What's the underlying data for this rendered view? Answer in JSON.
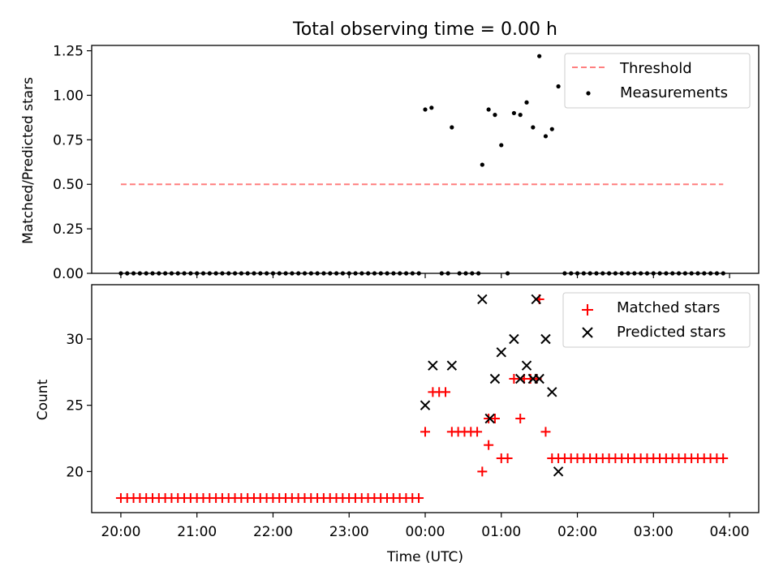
{
  "chart_data": [
    {
      "type": "scatter",
      "title": "Total observing time = 0.00 h",
      "xlabel": "",
      "ylabel": "Matched/Predicted stars",
      "xlim_hours": [
        -0.3833,
        8.3833
      ],
      "ylim": [
        0,
        1.28
      ],
      "yticks": [
        0,
        0.25,
        0.5,
        0.75,
        1.0,
        1.25
      ],
      "ytick_labels": [
        "0.00",
        "0.25",
        "0.50",
        "0.75",
        "1.00",
        "1.25"
      ],
      "legend": {
        "position": "top-right",
        "entries": [
          "Threshold",
          "Measurements"
        ]
      },
      "threshold": {
        "name": "Threshold",
        "value": 0.5,
        "x_start": 0.0,
        "x_end": 7.9167,
        "color": "#ff7f7f"
      },
      "series": [
        {
          "name": "Measurements",
          "color": "#000000",
          "zero_x": [
            0.0,
            0.0833,
            0.1667,
            0.25,
            0.3333,
            0.4167,
            0.5,
            0.5833,
            0.6667,
            0.75,
            0.8333,
            0.9167,
            1.0,
            1.0833,
            1.1667,
            1.25,
            1.3333,
            1.4167,
            1.5,
            1.5833,
            1.6667,
            1.75,
            1.8333,
            1.9167,
            2.0,
            2.0833,
            2.1667,
            2.25,
            2.3333,
            2.4167,
            2.5,
            2.5833,
            2.6667,
            2.75,
            2.8333,
            2.9167,
            3.0,
            3.0833,
            3.1667,
            3.25,
            3.3333,
            3.4167,
            3.5,
            3.5833,
            3.6667,
            3.75,
            3.8333,
            3.9167,
            4.2167,
            4.3,
            4.45,
            4.5333,
            4.6167,
            4.7,
            5.0833,
            5.8333,
            5.9167,
            6.0,
            6.0833,
            6.1667,
            6.25,
            6.3333,
            6.4167,
            6.5,
            6.5833,
            6.6667,
            6.75,
            6.8333,
            6.9167,
            7.0,
            7.0833,
            7.1667,
            7.25,
            7.3333,
            7.4167,
            7.5,
            7.5833,
            7.6667,
            7.75,
            7.8333,
            7.9167
          ],
          "points": [
            {
              "x": 4.0,
              "y": 0.92
            },
            {
              "x": 4.0833,
              "y": 0.93
            },
            {
              "x": 4.35,
              "y": 0.82
            },
            {
              "x": 4.75,
              "y": 0.61
            },
            {
              "x": 4.8333,
              "y": 0.92
            },
            {
              "x": 4.9167,
              "y": 0.89
            },
            {
              "x": 5.0,
              "y": 0.72
            },
            {
              "x": 5.1667,
              "y": 0.9
            },
            {
              "x": 5.25,
              "y": 0.89
            },
            {
              "x": 5.3333,
              "y": 0.96
            },
            {
              "x": 5.4167,
              "y": 0.82
            },
            {
              "x": 5.5,
              "y": 1.22
            },
            {
              "x": 5.5833,
              "y": 0.77
            },
            {
              "x": 5.6667,
              "y": 0.81
            },
            {
              "x": 5.75,
              "y": 1.05
            }
          ]
        }
      ]
    },
    {
      "type": "scatter",
      "title": "",
      "xlabel": "Time (UTC)",
      "ylabel": "Count",
      "xlim_hours": [
        -0.3833,
        8.3833
      ],
      "ylim": [
        16.9,
        34.1
      ],
      "yticks": [
        20,
        25,
        30
      ],
      "ytick_labels": [
        "20",
        "25",
        "30"
      ],
      "xticks_hours": [
        0,
        1,
        2,
        3,
        4,
        5,
        6,
        7,
        8
      ],
      "xtick_labels": [
        "20:00",
        "21:00",
        "22:00",
        "23:00",
        "00:00",
        "01:00",
        "02:00",
        "03:00",
        "04:00"
      ],
      "legend": {
        "position": "top-right",
        "entries": [
          "Matched stars",
          "Predicted stars"
        ]
      },
      "series": [
        {
          "name": "Matched stars",
          "marker": "plus",
          "color": "#ff0000",
          "runs": [
            {
              "x_start": 0.0,
              "x_end": 3.9167,
              "step": 0.0833,
              "y": 18
            },
            {
              "x_start": 5.8333,
              "x_end": 7.9167,
              "step": 0.0833,
              "y": 21
            }
          ],
          "points": [
            {
              "x": 4.0,
              "y": 23
            },
            {
              "x": 4.1,
              "y": 26
            },
            {
              "x": 4.1833,
              "y": 26
            },
            {
              "x": 4.2667,
              "y": 26
            },
            {
              "x": 4.35,
              "y": 23
            },
            {
              "x": 4.4333,
              "y": 23
            },
            {
              "x": 4.5167,
              "y": 23
            },
            {
              "x": 4.6,
              "y": 23
            },
            {
              "x": 4.6833,
              "y": 23
            },
            {
              "x": 4.75,
              "y": 20
            },
            {
              "x": 4.8333,
              "y": 22
            },
            {
              "x": 4.8333,
              "y": 24
            },
            {
              "x": 4.9167,
              "y": 24
            },
            {
              "x": 5.0,
              "y": 21
            },
            {
              "x": 5.0833,
              "y": 21
            },
            {
              "x": 5.1667,
              "y": 27
            },
            {
              "x": 5.25,
              "y": 24
            },
            {
              "x": 5.3,
              "y": 27
            },
            {
              "x": 5.3833,
              "y": 27
            },
            {
              "x": 5.4667,
              "y": 27
            },
            {
              "x": 5.5,
              "y": 33
            },
            {
              "x": 5.5833,
              "y": 23
            },
            {
              "x": 5.6667,
              "y": 21
            },
            {
              "x": 5.75,
              "y": 21
            }
          ]
        },
        {
          "name": "Predicted stars",
          "marker": "x",
          "color": "#000000",
          "points": [
            {
              "x": 4.0,
              "y": 25
            },
            {
              "x": 4.1,
              "y": 28
            },
            {
              "x": 4.35,
              "y": 28
            },
            {
              "x": 4.75,
              "y": 33
            },
            {
              "x": 4.85,
              "y": 24
            },
            {
              "x": 4.9167,
              "y": 27
            },
            {
              "x": 5.0,
              "y": 29
            },
            {
              "x": 5.1667,
              "y": 30
            },
            {
              "x": 5.25,
              "y": 27
            },
            {
              "x": 5.3333,
              "y": 28
            },
            {
              "x": 5.4167,
              "y": 27
            },
            {
              "x": 5.4583,
              "y": 33
            },
            {
              "x": 5.5,
              "y": 27
            },
            {
              "x": 5.5833,
              "y": 30
            },
            {
              "x": 5.6667,
              "y": 26
            },
            {
              "x": 5.75,
              "y": 20
            }
          ]
        }
      ]
    }
  ]
}
